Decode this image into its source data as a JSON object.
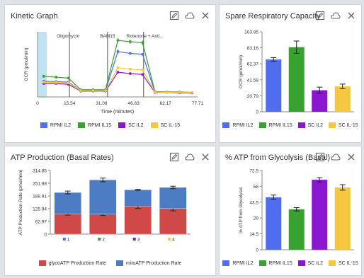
{
  "colors": {
    "rpmi_il2": "#4f6dee",
    "rpmi_il15": "#38a12f",
    "sc_il2": "#8a17d0",
    "sc_il15": "#f6c840",
    "glyco": "#cf4949",
    "mito": "#4b7cc4"
  },
  "icons": [
    "edit-icon",
    "cloud-icon",
    "close-icon"
  ],
  "panels": {
    "kinetic": {
      "title": "Kinetic Graph"
    },
    "spare": {
      "title": "Spare Respiratory Capacity"
    },
    "atp": {
      "title": "ATP Production (Basal Rates)"
    },
    "glyco": {
      "title": "% ATP from Glycolysis (Basal)"
    }
  },
  "chart_data": [
    {
      "type": "line",
      "title": "Kinetic Graph",
      "xlabel": "Time (minutes)",
      "ylabel": "OCR (pmol/min)",
      "xlim": [
        0,
        77.71
      ],
      "xticks": [
        "0",
        "15.54",
        "31.08",
        "46.63",
        "62.17",
        "77.71"
      ],
      "yticks": [],
      "injections": [
        {
          "label": "Oligomycin",
          "x": 15.5
        },
        {
          "label": "BAM15",
          "x": 34
        },
        {
          "label": "Rotenone + Anti...",
          "x": 51.5
        }
      ],
      "shaded_region": [
        0,
        4.5
      ],
      "ylim": [
        0,
        145
      ],
      "x": [
        3,
        9,
        15,
        21,
        27,
        33,
        39,
        45,
        51,
        57,
        63,
        69,
        75
      ],
      "series": [
        {
          "name": "RPMI IL2",
          "color": "#4f6dee",
          "values": [
            35,
            34,
            33,
            14,
            14,
            14,
            101,
            97,
            95,
            11,
            10,
            10,
            9
          ]
        },
        {
          "name": "RPMI IL15",
          "color": "#38a12f",
          "values": [
            46,
            44,
            42,
            16,
            16,
            16,
            126,
            123,
            121,
            12,
            11,
            11,
            10
          ]
        },
        {
          "name": "SC IL2",
          "color": "#8a17d0",
          "values": [
            30,
            30,
            28,
            13,
            13,
            13,
            55,
            52,
            50,
            10,
            10,
            9,
            9
          ]
        },
        {
          "name": "SC IL-15",
          "color": "#f6c840",
          "values": [
            33,
            32,
            31,
            14,
            14,
            14,
            65,
            62,
            60,
            11,
            10,
            10,
            10
          ]
        }
      ],
      "legend": [
        "RPMI IL2",
        "RPMI IL15",
        "SC IL2",
        "SC IL-15"
      ],
      "legend_position": "bottom"
    },
    {
      "type": "bar",
      "title": "Spare Respiratory Capacity",
      "ylabel": "OCR (pmol/min)",
      "ylim": [
        0,
        103.95
      ],
      "yticks": [
        "0",
        "20.79",
        "41.58",
        "62.37",
        "83.16",
        "103.95"
      ],
      "categories": [
        "RPMI IL2",
        "RPMI IL15",
        "SC IL2",
        "SC IL-15"
      ],
      "values": [
        68,
        84,
        28,
        33
      ],
      "errors": [
        2.5,
        8,
        4,
        3
      ],
      "colors": [
        "#4f6dee",
        "#38a12f",
        "#8a17d0",
        "#f6c840"
      ],
      "legend": [
        "RPMI IL2",
        "RPMI IL15",
        "SC IL2",
        "SC IL-15"
      ],
      "legend_position": "bottom"
    },
    {
      "type": "bar",
      "stacked": true,
      "title": "ATP Production (Basal Rates)",
      "ylabel": "ATP Production Rate (pmol/min)",
      "ylim": [
        0,
        314.85
      ],
      "yticks": [
        "0",
        "62.97",
        "125.94",
        "188.91",
        "251.88",
        "314.85"
      ],
      "categories": [
        "1",
        "2",
        "3",
        "4"
      ],
      "category_colors": [
        "#4f6dee",
        "#38a12f",
        "#8a17d0",
        "#f6c840"
      ],
      "series": [
        {
          "name": "glycoATP Production Rate",
          "color": "#cf4949",
          "values": [
            100,
            99,
            137,
            127
          ],
          "errors": [
            6,
            7,
            10,
            12
          ]
        },
        {
          "name": "mitoATP Production Rate",
          "color": "#4b7cc4",
          "values": [
            106,
            169,
            82,
            104
          ],
          "errors": [
            7,
            9,
            3,
            6
          ]
        }
      ],
      "legend": [
        "glycoATP Production Rate",
        "mitoATP Production Rate"
      ],
      "legend_position": "bottom"
    },
    {
      "type": "bar",
      "title": "% ATP from Glycolysis (Basal)",
      "ylabel": "% ATP from Glycolysis",
      "ylim": [
        0,
        72.5
      ],
      "yticks": [
        "0",
        "14.5",
        "29",
        "43.5",
        "58",
        "72.5"
      ],
      "categories": [
        "RPMI IL2",
        "RPMI IL15",
        "SC IL2",
        "SC IL-15"
      ],
      "values": [
        48,
        37,
        64,
        57
      ],
      "errors": [
        2,
        1.5,
        2,
        2.5
      ],
      "colors": [
        "#4f6dee",
        "#38a12f",
        "#8a17d0",
        "#f6c840"
      ],
      "legend": [
        "RPMI IL2",
        "RPMI IL15",
        "SC IL2",
        "SC IL-15"
      ],
      "legend_position": "bottom"
    }
  ]
}
